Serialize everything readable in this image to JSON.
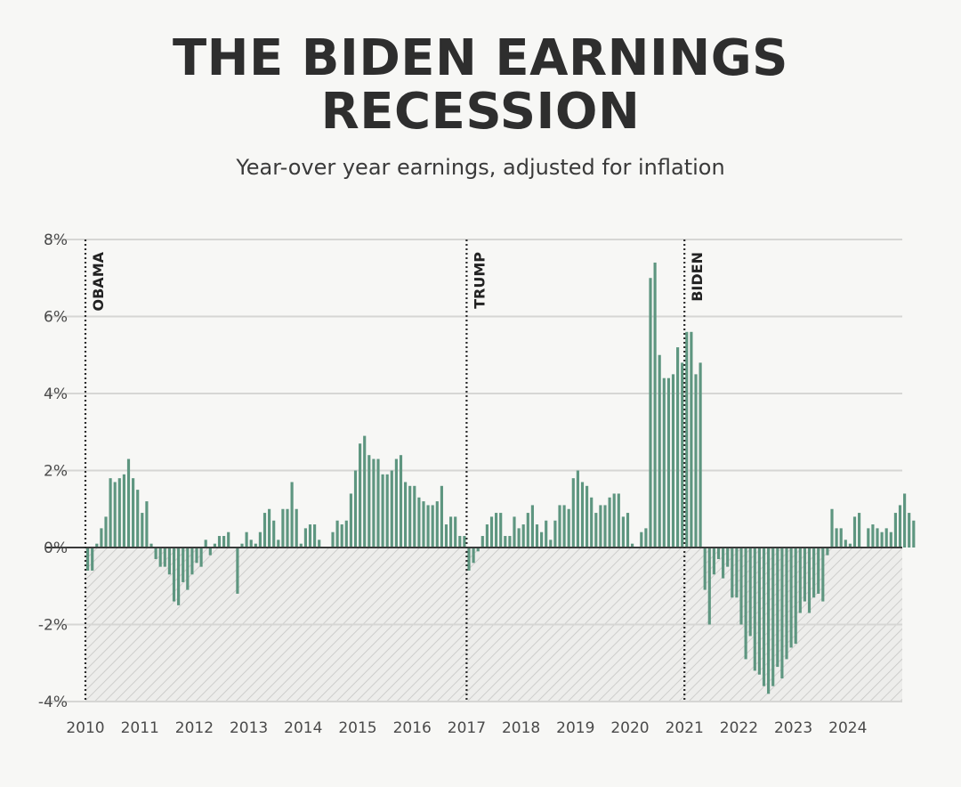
{
  "chart_data": {
    "type": "bar",
    "title_line1": "THE BIDEN EARNINGS",
    "title_line2": "RECESSION",
    "subtitle": "Year-over year earnings, adjusted for inflation",
    "x_start_year": 2010,
    "x_end_year": 2025,
    "ylim": [
      -4,
      8
    ],
    "y_ticks": [
      {
        "value": 8,
        "label": "8%"
      },
      {
        "value": 6,
        "label": "6%"
      },
      {
        "value": 4,
        "label": "4%"
      },
      {
        "value": 2,
        "label": "2%"
      },
      {
        "value": 0,
        "label": "0%"
      },
      {
        "value": -2,
        "label": "-2%"
      },
      {
        "value": -4,
        "label": "-4%"
      }
    ],
    "x_ticks": [
      "2010",
      "2011",
      "2012",
      "2013",
      "2014",
      "2015",
      "2016",
      "2017",
      "2018",
      "2019",
      "2020",
      "2021",
      "2022",
      "2023",
      "2024"
    ],
    "grid": true,
    "negative_region_hatched": true,
    "bar_color": "#5e9680",
    "markers": [
      {
        "label": "OBAMA",
        "year": 2010
      },
      {
        "label": "TRUMP",
        "year": 2017
      },
      {
        "label": "BIDEN",
        "year": 2021
      }
    ],
    "series": [
      {
        "frequency": "monthly",
        "start": "2010-01",
        "values": [
          -0.6,
          -0.6,
          0.1,
          0.5,
          0.8,
          1.8,
          1.7,
          1.8,
          1.9,
          2.3,
          1.8,
          1.5,
          0.9,
          1.2,
          0.1,
          -0.3,
          -0.5,
          -0.5,
          -0.7,
          -1.4,
          -1.5,
          -0.9,
          -1.1,
          -0.7,
          -0.4,
          -0.5,
          0.2,
          -0.2,
          0.1,
          0.3,
          0.3,
          0.4,
          0.0,
          -1.2,
          0.1,
          0.4,
          0.2,
          0.1,
          0.4,
          0.9,
          1.0,
          0.7,
          0.2,
          1.0,
          1.0,
          1.7,
          1.0,
          0.1,
          0.5,
          0.6,
          0.6,
          0.2,
          0.0,
          0.0,
          0.4,
          0.7,
          0.6,
          0.7,
          1.4,
          2.0,
          2.7,
          2.9,
          2.4,
          2.3,
          2.3,
          1.9,
          1.9,
          2.0,
          2.3,
          2.4,
          1.7,
          1.6,
          1.6,
          1.3,
          1.2,
          1.1,
          1.1,
          1.2,
          1.6,
          0.6,
          0.8,
          0.8,
          0.3,
          0.3,
          -0.6,
          -0.4,
          -0.1,
          0.3,
          0.6,
          0.8,
          0.9,
          0.9,
          0.3,
          0.3,
          0.8,
          0.5,
          0.6,
          0.9,
          1.1,
          0.6,
          0.4,
          0.7,
          0.2,
          0.7,
          1.1,
          1.1,
          1.0,
          1.8,
          2.0,
          1.7,
          1.6,
          1.3,
          0.9,
          1.1,
          1.1,
          1.3,
          1.4,
          1.4,
          0.8,
          0.9,
          0.1,
          0.0,
          0.4,
          0.5,
          7.0,
          7.4,
          5.0,
          4.4,
          4.4,
          4.5,
          5.2,
          4.8,
          5.6,
          5.6,
          4.5,
          4.8,
          -1.1,
          -2.0,
          -0.7,
          -0.3,
          -0.8,
          -0.5,
          -1.3,
          -1.3,
          -2.0,
          -2.9,
          -2.3,
          -3.2,
          -3.3,
          -3.6,
          -3.8,
          -3.6,
          -3.1,
          -3.4,
          -2.9,
          -2.6,
          -2.5,
          -1.7,
          -1.4,
          -1.7,
          -1.3,
          -1.2,
          -1.4,
          -0.2,
          1.0,
          0.5,
          0.5,
          0.2,
          0.1,
          0.8,
          0.9,
          0.0,
          0.5,
          0.6,
          0.5,
          0.4,
          0.5,
          0.4,
          0.9,
          1.1,
          1.4,
          0.9,
          0.7
        ]
      }
    ]
  }
}
